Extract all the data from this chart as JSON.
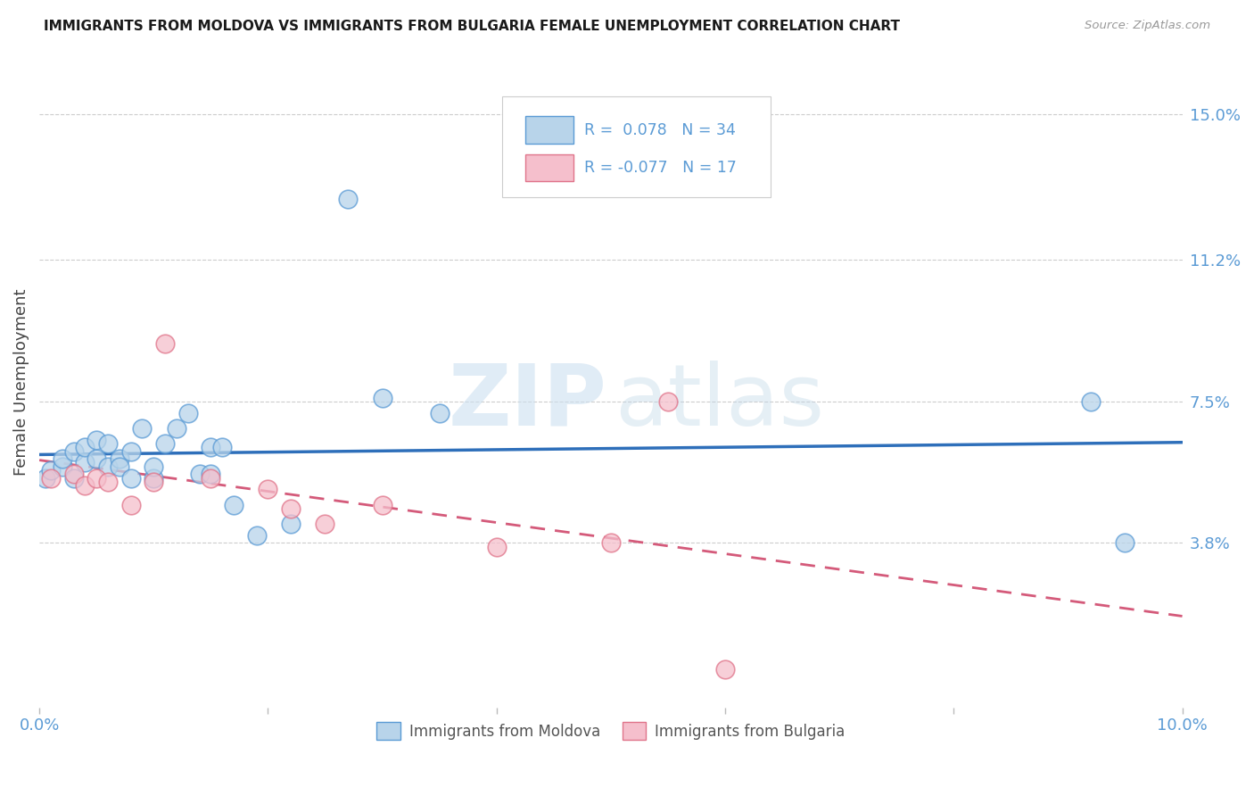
{
  "title": "IMMIGRANTS FROM MOLDOVA VS IMMIGRANTS FROM BULGARIA FEMALE UNEMPLOYMENT CORRELATION CHART",
  "source": "Source: ZipAtlas.com",
  "ylabel": "Female Unemployment",
  "ytick_labels": [
    "15.0%",
    "11.2%",
    "7.5%",
    "3.8%"
  ],
  "ytick_values": [
    0.15,
    0.112,
    0.075,
    0.038
  ],
  "xlim": [
    0.0,
    0.1
  ],
  "ylim": [
    -0.005,
    0.165
  ],
  "legend_moldova": "Immigrants from Moldova",
  "legend_bulgaria": "Immigrants from Bulgaria",
  "r_moldova": 0.078,
  "n_moldova": 34,
  "r_bulgaria": -0.077,
  "n_bulgaria": 17,
  "color_moldova_fill": "#b8d4ea",
  "color_bulgaria_fill": "#f5bfcc",
  "color_moldova_edge": "#5b9bd5",
  "color_bulgaria_edge": "#e0748a",
  "color_moldova_line": "#2e6fba",
  "color_bulgaria_line": "#d45a7a",
  "color_axis_labels": "#5b9bd5",
  "moldova_x": [
    0.0005,
    0.001,
    0.002,
    0.002,
    0.003,
    0.003,
    0.004,
    0.004,
    0.005,
    0.005,
    0.006,
    0.006,
    0.007,
    0.007,
    0.008,
    0.008,
    0.009,
    0.01,
    0.01,
    0.011,
    0.012,
    0.013,
    0.014,
    0.015,
    0.015,
    0.016,
    0.017,
    0.019,
    0.022,
    0.027,
    0.03,
    0.035,
    0.092,
    0.095
  ],
  "moldova_y": [
    0.055,
    0.057,
    0.058,
    0.06,
    0.055,
    0.062,
    0.059,
    0.063,
    0.06,
    0.065,
    0.058,
    0.064,
    0.06,
    0.058,
    0.062,
    0.055,
    0.068,
    0.055,
    0.058,
    0.064,
    0.068,
    0.072,
    0.056,
    0.063,
    0.056,
    0.063,
    0.048,
    0.04,
    0.043,
    0.128,
    0.076,
    0.072,
    0.075,
    0.038
  ],
  "bulgaria_x": [
    0.001,
    0.003,
    0.004,
    0.005,
    0.006,
    0.008,
    0.01,
    0.011,
    0.015,
    0.02,
    0.022,
    0.025,
    0.03,
    0.04,
    0.05,
    0.055,
    0.06
  ],
  "bulgaria_y": [
    0.055,
    0.056,
    0.053,
    0.055,
    0.054,
    0.048,
    0.054,
    0.09,
    0.055,
    0.052,
    0.047,
    0.043,
    0.048,
    0.037,
    0.038,
    0.075,
    0.005
  ]
}
